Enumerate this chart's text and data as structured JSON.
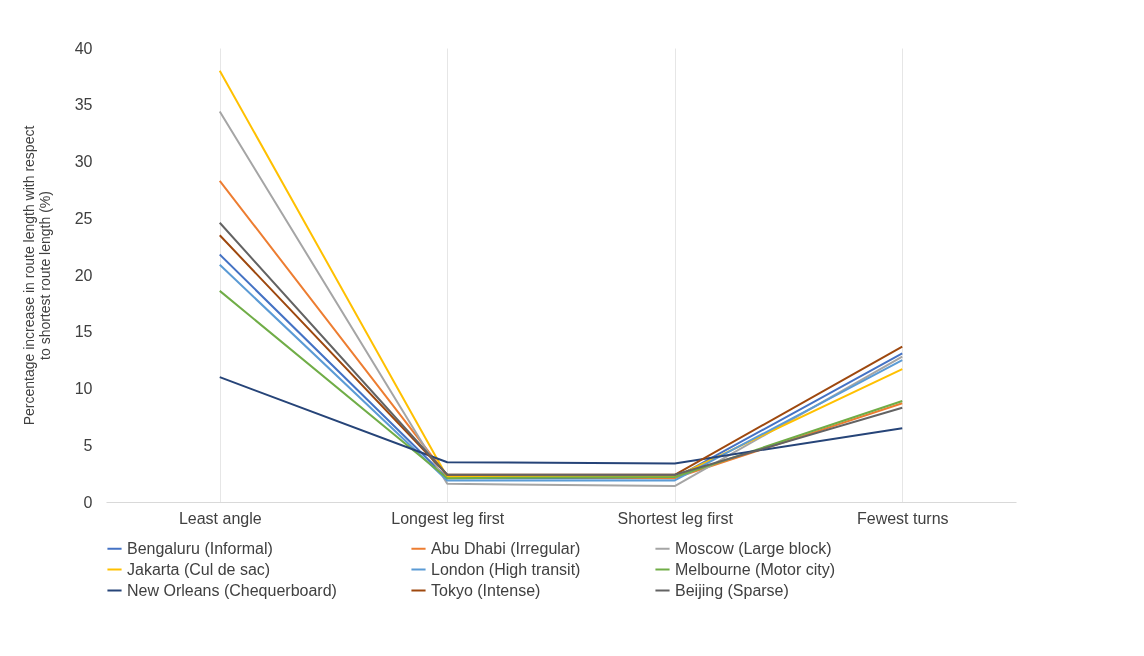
{
  "chart_data": {
    "type": "line",
    "ylabel": "Percentage increase in route length with respect to shortest route length (%)",
    "categories": [
      "Least angle",
      "Longest leg first",
      "Shortest leg first",
      "Fewest turns"
    ],
    "ylim": [
      0,
      40
    ],
    "yticks": [
      0,
      5,
      10,
      15,
      20,
      25,
      30,
      35,
      40
    ],
    "grid": "x",
    "legend": "bottom",
    "marker": "none",
    "line_style": "solid",
    "series": [
      {
        "name": "Bengaluru (Informal)",
        "color": "#4472c4",
        "values": [
          21.8,
          2.1,
          2.1,
          13.1
        ]
      },
      {
        "name": "Abu Dhabi (Irregular)",
        "color": "#ed7d31",
        "values": [
          28.3,
          2.3,
          2.1,
          8.7
        ]
      },
      {
        "name": "Moscow (Large block)",
        "color": "#a5a5a5",
        "values": [
          34.4,
          1.6,
          1.4,
          12.8
        ]
      },
      {
        "name": "Jakarta (Cul de sac)",
        "color": "#ffc000",
        "values": [
          38,
          2.2,
          2.2,
          11.7
        ]
      },
      {
        "name": "London (High transit)",
        "color": "#5b9bd5",
        "values": [
          20.9,
          1.9,
          1.9,
          12.5
        ]
      },
      {
        "name": "Melbourne (Motor city)",
        "color": "#70ad47",
        "values": [
          18.6,
          2.1,
          2.2,
          8.9
        ]
      },
      {
        "name": "New Orleans (Chequerboard)",
        "color": "#264478",
        "values": [
          11,
          3.5,
          3.4,
          6.5
        ]
      },
      {
        "name": "Tokyo (Intense)",
        "color": "#9e480e",
        "values": [
          23.5,
          2.4,
          2.4,
          13.7
        ]
      },
      {
        "name": "Beijing (Sparse)",
        "color": "#636363",
        "values": [
          24.6,
          2.4,
          2.4,
          8.3
        ]
      }
    ]
  }
}
